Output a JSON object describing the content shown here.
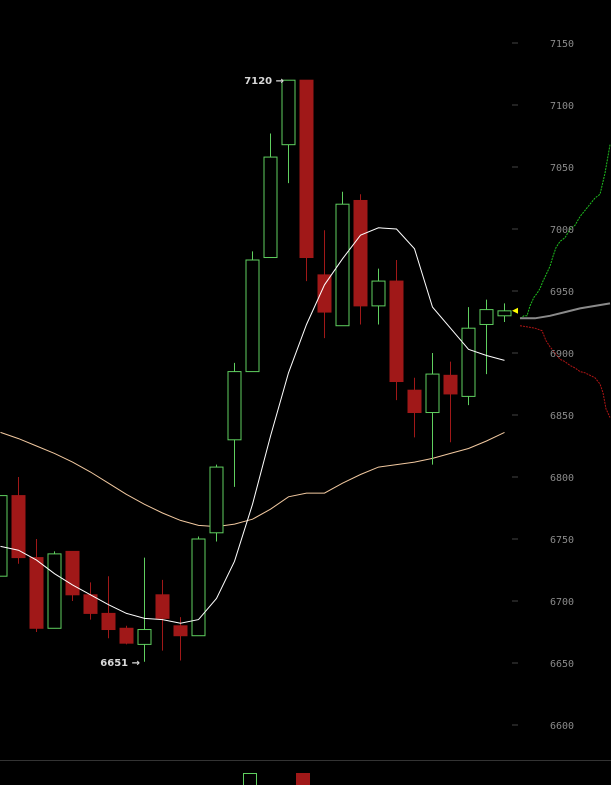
{
  "chart_data": {
    "type": "candlestick",
    "title": "",
    "xlabel": "",
    "ylabel": "",
    "ylim": [
      6580,
      7170
    ],
    "yticks": [
      6600,
      6650,
      6700,
      6750,
      6800,
      6850,
      6900,
      6950,
      7000,
      7050,
      7100,
      7150
    ],
    "grid": false,
    "colors": {
      "up": "#5fcf5f",
      "down": "#a01818",
      "ma_fast": "#ffffff",
      "ma_slow": "#f2c9a0",
      "bid": "#1fbf1f",
      "ask": "#b01515",
      "mid": "#8a8a8a",
      "marker": "#ffff00"
    },
    "candles": [
      {
        "o": 6720,
        "h": 6785,
        "l": 6720,
        "c": 6785
      },
      {
        "o": 6785,
        "h": 6800,
        "l": 6730,
        "c": 6735
      },
      {
        "o": 6735,
        "h": 6750,
        "l": 6675,
        "c": 6678
      },
      {
        "o": 6678,
        "h": 6740,
        "l": 6678,
        "c": 6738
      },
      {
        "o": 6740,
        "h": 6740,
        "l": 6700,
        "c": 6705
      },
      {
        "o": 6705,
        "h": 6715,
        "l": 6685,
        "c": 6690
      },
      {
        "o": 6690,
        "h": 6720,
        "l": 6670,
        "c": 6677
      },
      {
        "o": 6678,
        "h": 6680,
        "l": 6665,
        "c": 6666
      },
      {
        "o": 6665,
        "h": 6735,
        "l": 6651,
        "c": 6677
      },
      {
        "o": 6705,
        "h": 6717,
        "l": 6660,
        "c": 6686
      },
      {
        "o": 6680,
        "h": 6687,
        "l": 6652,
        "c": 6672
      },
      {
        "o": 6672,
        "h": 6752,
        "l": 6672,
        "c": 6750
      },
      {
        "o": 6755,
        "h": 6810,
        "l": 6748,
        "c": 6808
      },
      {
        "o": 6830,
        "h": 6892,
        "l": 6792,
        "c": 6885
      },
      {
        "o": 6885,
        "h": 6982,
        "l": 6885,
        "c": 6975
      },
      {
        "o": 6977,
        "h": 7077,
        "l": 6977,
        "c": 7058
      },
      {
        "o": 7068,
        "h": 7120,
        "l": 7037,
        "c": 7120
      },
      {
        "o": 7120,
        "h": 7120,
        "l": 6958,
        "c": 6977
      },
      {
        "o": 6963,
        "h": 6999,
        "l": 6912,
        "c": 6933
      },
      {
        "o": 6922,
        "h": 7030,
        "l": 6922,
        "c": 7020
      },
      {
        "o": 7023,
        "h": 7028,
        "l": 6923,
        "c": 6938
      },
      {
        "o": 6938,
        "h": 6968,
        "l": 6923,
        "c": 6958
      },
      {
        "o": 6958,
        "h": 6975,
        "l": 6862,
        "c": 6877
      },
      {
        "o": 6870,
        "h": 6880,
        "l": 6832,
        "c": 6852
      },
      {
        "o": 6852,
        "h": 6900,
        "l": 6810,
        "c": 6883
      },
      {
        "o": 6882,
        "h": 6893,
        "l": 6828,
        "c": 6867
      },
      {
        "o": 6865,
        "h": 6937,
        "l": 6858,
        "c": 6920
      },
      {
        "o": 6923,
        "h": 6943,
        "l": 6883,
        "c": 6935
      },
      {
        "o": 6930,
        "h": 6940,
        "l": 6925,
        "c": 6934
      }
    ],
    "ma_fast": [
      6744,
      6741,
      6733,
      6722,
      6713,
      6705,
      6697,
      6690,
      6686,
      6685,
      6682,
      6685,
      6702,
      6732,
      6778,
      6833,
      6884,
      6923,
      6955,
      6976,
      6995,
      7001,
      7000,
      6984,
      6937,
      6920,
      6903,
      6898,
      6894
    ],
    "ma_slow": [
      6836,
      6831,
      6825,
      6819,
      6812,
      6804,
      6795,
      6786,
      6778,
      6771,
      6765,
      6761,
      6760,
      6762,
      6766,
      6774,
      6784,
      6787,
      6787,
      6795,
      6802,
      6808,
      6810,
      6812,
      6815,
      6819,
      6823,
      6829,
      6836
    ],
    "depth_bid": [
      [
        0,
        6928
      ],
      [
        4,
        6930
      ],
      [
        7,
        6930
      ],
      [
        10,
        6938
      ],
      [
        14,
        6945
      ],
      [
        17,
        6948
      ],
      [
        20,
        6952
      ],
      [
        23,
        6958
      ],
      [
        26,
        6963
      ],
      [
        30,
        6970
      ],
      [
        33,
        6978
      ],
      [
        36,
        6985
      ],
      [
        40,
        6990
      ],
      [
        45,
        6993
      ],
      [
        50,
        7000
      ],
      [
        55,
        7003
      ],
      [
        60,
        7010
      ],
      [
        65,
        7015
      ],
      [
        70,
        7020
      ],
      [
        75,
        7025
      ],
      [
        80,
        7028
      ],
      [
        85,
        7045
      ],
      [
        90,
        7068
      ]
    ],
    "depth_ask": [
      [
        0,
        6922
      ],
      [
        8,
        6921
      ],
      [
        15,
        6920
      ],
      [
        22,
        6918
      ],
      [
        26,
        6910
      ],
      [
        30,
        6905
      ],
      [
        35,
        6900
      ],
      [
        40,
        6895
      ],
      [
        45,
        6893
      ],
      [
        50,
        6890
      ],
      [
        55,
        6888
      ],
      [
        60,
        6885
      ],
      [
        65,
        6884
      ],
      [
        70,
        6882
      ],
      [
        75,
        6880
      ],
      [
        80,
        6875
      ],
      [
        83,
        6868
      ],
      [
        86,
        6855
      ],
      [
        90,
        6848
      ]
    ],
    "depth_mid": [
      [
        0,
        6928
      ],
      [
        15,
        6928
      ],
      [
        30,
        6930
      ],
      [
        45,
        6933
      ],
      [
        60,
        6936
      ],
      [
        75,
        6938
      ],
      [
        90,
        6940
      ]
    ],
    "annotations": [
      {
        "label": "7120",
        "candle": 16,
        "price": 7120
      },
      {
        "label": "6651",
        "candle": 8,
        "price": 6651
      }
    ],
    "legend": [
      {
        "type": "up"
      },
      {
        "type": "down"
      }
    ]
  }
}
